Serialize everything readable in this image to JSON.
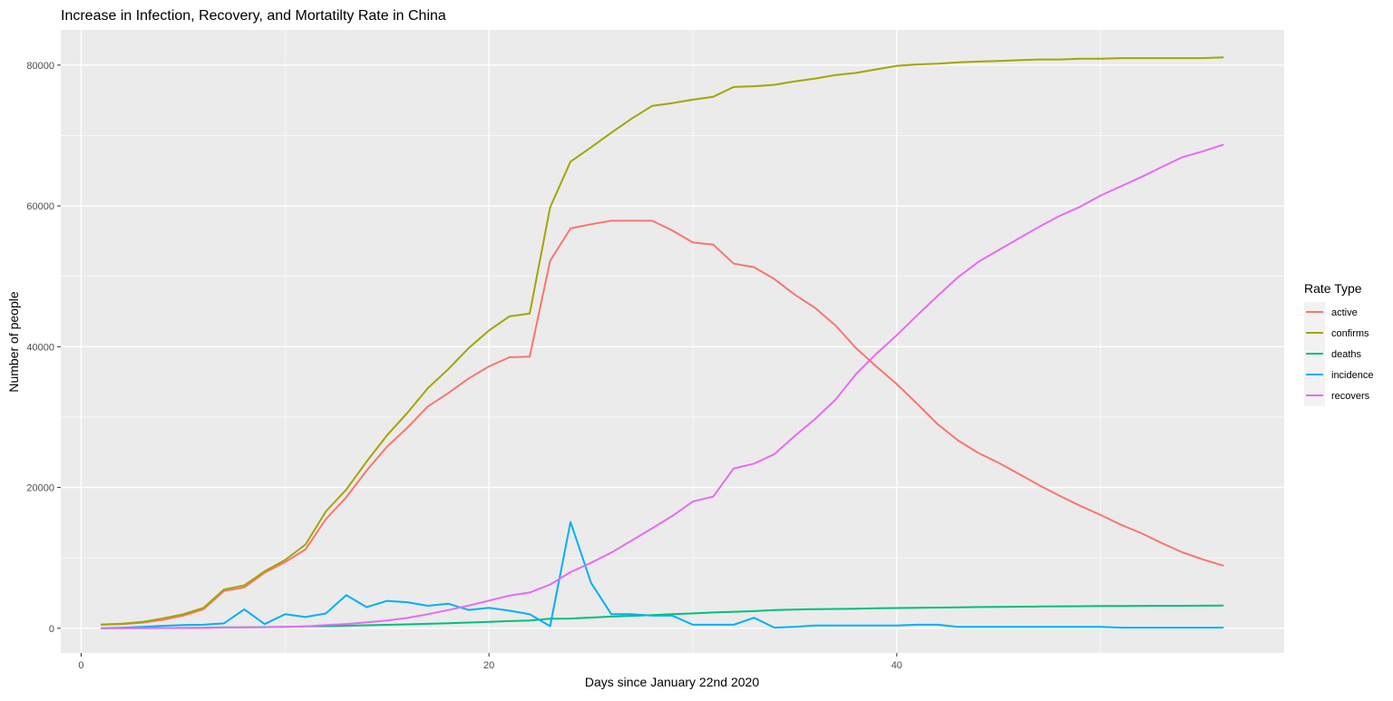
{
  "chart_data": {
    "type": "line",
    "title": "Increase in Infection, Recovery, and Mortatilty Rate in China",
    "xlabel": "Days since January 22nd 2020",
    "ylabel": "Number of people",
    "xlim": [
      -1,
      59
    ],
    "ylim": [
      -3500,
      85000
    ],
    "x_ticks": [
      0,
      20,
      40
    ],
    "x_tick_labels": [
      "0",
      "20",
      "40"
    ],
    "x_minor_ticks": [
      10,
      30,
      50
    ],
    "y_ticks": [
      0,
      20000,
      40000,
      60000,
      80000
    ],
    "y_tick_labels": [
      "0",
      "20000",
      "40000",
      "60000",
      "80000"
    ],
    "y_minor_ticks": [
      10000,
      30000,
      50000,
      70000
    ],
    "grid": true,
    "panel_background": "#ebebeb",
    "legend": {
      "title": "Rate Type",
      "position": "right"
    },
    "x": [
      1,
      2,
      3,
      4,
      5,
      6,
      7,
      8,
      9,
      10,
      11,
      12,
      13,
      14,
      15,
      16,
      17,
      18,
      19,
      20,
      21,
      22,
      23,
      24,
      25,
      26,
      27,
      28,
      29,
      30,
      31,
      32,
      33,
      34,
      35,
      36,
      37,
      38,
      39,
      40,
      41,
      42,
      43,
      44,
      45,
      46,
      47,
      48,
      49,
      50,
      51,
      52,
      53,
      54,
      55,
      56
    ],
    "series": [
      {
        "name": "active",
        "color": "#f8766d",
        "values": [
          500,
          600,
          800,
          1200,
          1800,
          2700,
          5300,
          5800,
          7900,
          9400,
          11200,
          15500,
          18600,
          22400,
          25800,
          28500,
          31500,
          33400,
          35500,
          37200,
          38500,
          38600,
          52200,
          56800,
          57400,
          57900,
          57900,
          57900,
          56500,
          54800,
          54500,
          51800,
          51300,
          49600,
          47400,
          45500,
          43000,
          39800,
          37200,
          34700,
          31900,
          29000,
          26700,
          24900,
          23500,
          21900,
          20300,
          18800,
          17400,
          16100,
          14700,
          13500,
          12100,
          10800,
          9800,
          8900
        ]
      },
      {
        "name": "confirms",
        "color": "#a3a500",
        "values": [
          550,
          650,
          900,
          1400,
          2000,
          2900,
          5500,
          6100,
          8100,
          9700,
          11900,
          16600,
          19700,
          23700,
          27400,
          30600,
          34100,
          36800,
          39800,
          42300,
          44300,
          44700,
          59800,
          66300,
          68300,
          70400,
          72400,
          74200,
          74600,
          75100,
          75500,
          76900,
          77000,
          77200,
          77700,
          78100,
          78600,
          78900,
          79400,
          79900,
          80100,
          80200,
          80400,
          80500,
          80600,
          80700,
          80800,
          80800,
          80900,
          80900,
          81000,
          81000,
          81000,
          81000,
          81000,
          81100
        ]
      },
      {
        "name": "deaths",
        "color": "#00bf7d",
        "values": [
          17,
          18,
          26,
          42,
          56,
          82,
          131,
          133,
          171,
          213,
          259,
          304,
          361,
          425,
          490,
          562,
          636,
          723,
          812,
          909,
          1017,
          1114,
          1368,
          1381,
          1524,
          1666,
          1772,
          1870,
          2006,
          2121,
          2239,
          2348,
          2445,
          2595,
          2666,
          2718,
          2747,
          2791,
          2838,
          2873,
          2915,
          2946,
          2984,
          3015,
          3045,
          3073,
          3099,
          3123,
          3140,
          3162,
          3173,
          3180,
          3194,
          3204,
          3218,
          3231
        ]
      },
      {
        "name": "incidence",
        "color": "#00b0f6",
        "values": [
          0,
          100,
          200,
          350,
          450,
          500,
          700,
          2700,
          600,
          2000,
          1600,
          2100,
          4700,
          3000,
          3900,
          3700,
          3200,
          3500,
          2600,
          2900,
          2500,
          2000,
          300,
          15100,
          6500,
          2000,
          2000,
          1800,
          1800,
          500,
          500,
          500,
          1500,
          100,
          200,
          400,
          400,
          400,
          400,
          400,
          500,
          500,
          200,
          200,
          200,
          200,
          200,
          200,
          200,
          200,
          100,
          100,
          100,
          100,
          100,
          100
        ]
      },
      {
        "name": "recovers",
        "color": "#e76bf3",
        "values": [
          28,
          30,
          36,
          39,
          49,
          58,
          101,
          120,
          135,
          214,
          275,
          463,
          614,
          843,
          1112,
          1477,
          1999,
          2596,
          3219,
          3918,
          4636,
          5082,
          6217,
          7977,
          9298,
          10755,
          12462,
          14206,
          15962,
          18014,
          18704,
          22699,
          23383,
          24734,
          27323,
          29745,
          32495,
          36117,
          39002,
          41625,
          44462,
          47204,
          49856,
          52045,
          53726,
          55404,
          57065,
          58600,
          59897,
          61475,
          62793,
          64111,
          65541,
          66911,
          67749,
          68679
        ]
      }
    ]
  }
}
